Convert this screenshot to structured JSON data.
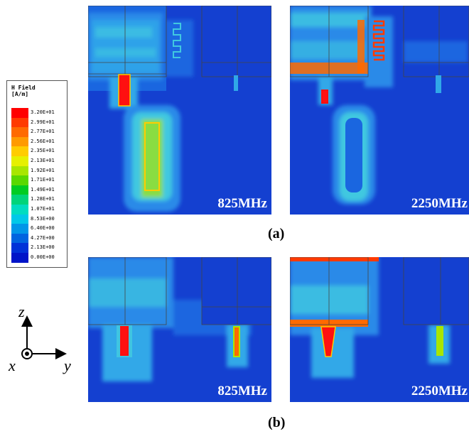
{
  "legend": {
    "title_line1": "H Field",
    "title_line2": "[A/m]",
    "entries": [
      {
        "label": "3.20E+01",
        "color": "#ff0000"
      },
      {
        "label": "2.99E+01",
        "color": "#ff3a00"
      },
      {
        "label": "2.77E+01",
        "color": "#ff6a00"
      },
      {
        "label": "2.56E+01",
        "color": "#ff9a00"
      },
      {
        "label": "2.35E+01",
        "color": "#ffcc00"
      },
      {
        "label": "2.13E+01",
        "color": "#e6f000"
      },
      {
        "label": "1.92E+01",
        "color": "#a8e600"
      },
      {
        "label": "1.71E+01",
        "color": "#5ad800"
      },
      {
        "label": "1.49E+01",
        "color": "#00cc22"
      },
      {
        "label": "1.28E+01",
        "color": "#00d47a"
      },
      {
        "label": "1.07E+01",
        "color": "#00dcc0"
      },
      {
        "label": "8.53E+00",
        "color": "#00c8e8"
      },
      {
        "label": "6.40E+00",
        "color": "#0096e8"
      },
      {
        "label": "4.27E+00",
        "color": "#0064e0"
      },
      {
        "label": "2.13E+00",
        "color": "#0032d8"
      },
      {
        "label": "0.00E+00",
        "color": "#0014c8"
      }
    ]
  },
  "panels": {
    "a_left_freq": "825MHz",
    "a_right_freq": "2250MHz",
    "b_left_freq": "825MHz",
    "b_right_freq": "2250MHz"
  },
  "subfigure_labels": {
    "a": "(a)",
    "b": "(b)"
  },
  "axes": {
    "z": "z",
    "x": "x",
    "y": "y"
  }
}
